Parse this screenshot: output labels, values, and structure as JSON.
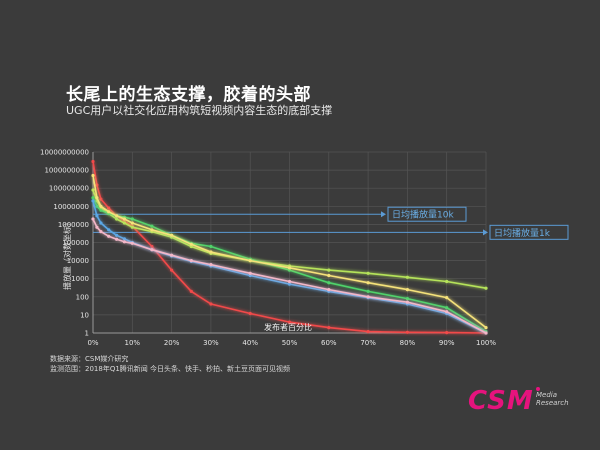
{
  "page": {
    "title": "长尾上的生态支撑，胶着的头部",
    "subtitle": "UGC用户以社交化应用构筑短视频内容生态的底部支撑"
  },
  "footer": {
    "source": "数据来源：CSM媒介研究",
    "scope": "监测范围：2018年Q1腾讯新闻 今日头条、快手、秒拍、新土豆页面可见视频"
  },
  "logo": {
    "text": "CSM",
    "line1": "Media",
    "line2": "Research"
  },
  "chart_data": {
    "type": "line",
    "ylabel": "播放量（对数坐标）",
    "xlabel": "发布者百分比",
    "yscale": "log",
    "ylim": [
      1,
      10000000000
    ],
    "y_ticks": [
      "1",
      "10",
      "100",
      "1000",
      "10000",
      "100000",
      "1000000",
      "10000000",
      "100000000",
      "1000000000",
      "10000000000"
    ],
    "x_ticks": [
      "0%",
      "10%",
      "20%",
      "30%",
      "40%",
      "50%",
      "60%",
      "70%",
      "80%",
      "90%",
      "100%"
    ],
    "grid": true,
    "reference_lines": [
      {
        "label": "日均播放量10k",
        "value": 3650000
      },
      {
        "label": "日均播放量1k",
        "value": 365000
      }
    ],
    "series": [
      {
        "color": "#f24a4a",
        "x": [
          0,
          1,
          2,
          4,
          6,
          8,
          10,
          15,
          20,
          25,
          30,
          40,
          50,
          60,
          70,
          80,
          90,
          100
        ],
        "y": [
          3000000000,
          150000000,
          25000000,
          8000000,
          3000000,
          1500000,
          800000,
          60000,
          3000,
          200,
          40,
          12,
          4,
          2,
          1.2,
          1.1,
          1.05,
          1
        ]
      },
      {
        "color": "#b5e35a",
        "x": [
          0,
          1,
          2,
          4,
          6,
          8,
          10,
          15,
          20,
          25,
          30,
          40,
          50,
          60,
          70,
          80,
          90,
          100
        ],
        "y": [
          80000000,
          20000000,
          8000000,
          4000000,
          2000000,
          1200000,
          700000,
          400000,
          200000,
          60000,
          25000,
          10000,
          5000,
          3000,
          2000,
          1200,
          700,
          300
        ]
      },
      {
        "color": "#4fd36a",
        "x": [
          0,
          1,
          2,
          4,
          6,
          8,
          10,
          15,
          20,
          25,
          30,
          40,
          50,
          60,
          70,
          80,
          90,
          100
        ],
        "y": [
          30000000,
          10000000,
          6000000,
          4000000,
          3000000,
          2500000,
          2000000,
          800000,
          250000,
          90000,
          60000,
          12000,
          3000,
          600,
          200,
          80,
          25,
          1.2
        ]
      },
      {
        "color": "#5aa7e6",
        "x": [
          0,
          1,
          2,
          4,
          6,
          8,
          10,
          15,
          20,
          25,
          30,
          40,
          50,
          60,
          70,
          80,
          90,
          100
        ],
        "y": [
          20000000,
          3000000,
          1200000,
          500000,
          250000,
          160000,
          100000,
          40000,
          18000,
          9000,
          5000,
          1500,
          500,
          200,
          90,
          40,
          12,
          1
        ]
      },
      {
        "color": "#f3b7c8",
        "x": [
          0,
          1,
          2,
          4,
          6,
          8,
          10,
          15,
          20,
          25,
          30,
          40,
          50,
          60,
          70,
          80,
          90,
          100
        ],
        "y": [
          2000000,
          700000,
          400000,
          220000,
          150000,
          110000,
          90000,
          40000,
          20000,
          10000,
          6000,
          2000,
          700,
          250,
          100,
          50,
          15,
          1
        ]
      },
      {
        "color": "#f5e27a",
        "x": [
          0,
          1,
          2,
          4,
          6,
          8,
          10,
          15,
          20,
          25,
          30,
          40,
          50,
          60,
          70,
          80,
          90,
          100
        ],
        "y": [
          500000000,
          30000000,
          10000000,
          5000000,
          3000000,
          2000000,
          1200000,
          500000,
          250000,
          80000,
          30000,
          10000,
          4000,
          1500,
          600,
          250,
          90,
          2
        ]
      }
    ]
  }
}
